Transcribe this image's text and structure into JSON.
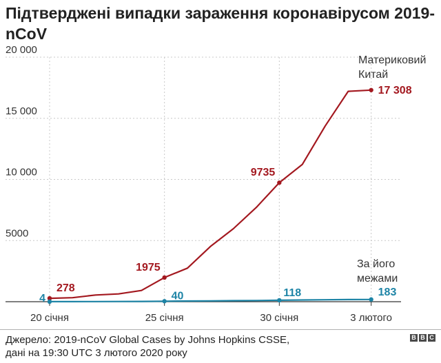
{
  "title": "Підтверджені випадки зараження коронавірусом 2019-nCoV",
  "source": {
    "line1": "Джерело: 2019-nCoV Global Cases by Johns Hopkins CSSE,",
    "line2": "дані на 19:30 UTC 3 лютого 2020 року"
  },
  "logo": [
    "B",
    "B",
    "C"
  ],
  "colors": {
    "china": "#a3181f",
    "outside": "#1d84a6",
    "grid": "#c8c8c8",
    "axis": "#333333"
  },
  "chart_data": {
    "type": "line",
    "title": "Підтверджені випадки зараження коронавірусом 2019-nCoV",
    "xlabel": "",
    "ylabel": "",
    "xlim": [
      20,
      35
    ],
    "ylim": [
      0,
      20000
    ],
    "y_ticks": [
      {
        "value": 5000,
        "label": "5000"
      },
      {
        "value": 10000,
        "label": "10 000"
      },
      {
        "value": 15000,
        "label": "15 000"
      },
      {
        "value": 20000,
        "label": "20 000"
      }
    ],
    "x_ticks": [
      {
        "value": 20,
        "label": "20 січня"
      },
      {
        "value": 25,
        "label": "25 січня"
      },
      {
        "value": 30,
        "label": "30 січня"
      },
      {
        "value": 34,
        "label": "3 лютого"
      }
    ],
    "series": [
      {
        "name": "Материковий Китай",
        "name_lines": [
          "Материковий",
          "Китай"
        ],
        "color_key": "china",
        "x": [
          20,
          21,
          22,
          23,
          24,
          25,
          26,
          27,
          28,
          29,
          30,
          31,
          32,
          33,
          34
        ],
        "values": [
          278,
          326,
          547,
          639,
          916,
          1975,
          2744,
          4515,
          5974,
          7711,
          9735,
          11221,
          14380,
          17205,
          17308
        ],
        "annotations": [
          {
            "x": 20,
            "value": 278,
            "label": "278"
          },
          {
            "x": 25,
            "value": 1975,
            "label": "1975"
          },
          {
            "x": 30,
            "value": 9735,
            "label": "9735"
          },
          {
            "x": 34,
            "value": 17308,
            "label": "17 308"
          }
        ]
      },
      {
        "name": "За його межами",
        "name_lines": [
          "За його",
          "межами"
        ],
        "color_key": "outside",
        "x": [
          20,
          21,
          22,
          23,
          24,
          25,
          26,
          27,
          28,
          29,
          30,
          31,
          32,
          33,
          34
        ],
        "values": [
          4,
          8,
          12,
          18,
          25,
          40,
          56,
          70,
          82,
          98,
          118,
          140,
          158,
          172,
          183
        ],
        "annotations": [
          {
            "x": 20,
            "value": 4,
            "label": "4"
          },
          {
            "x": 25,
            "value": 40,
            "label": "40"
          },
          {
            "x": 30,
            "value": 118,
            "label": "118"
          },
          {
            "x": 34,
            "value": 183,
            "label": "183"
          }
        ]
      }
    ]
  }
}
